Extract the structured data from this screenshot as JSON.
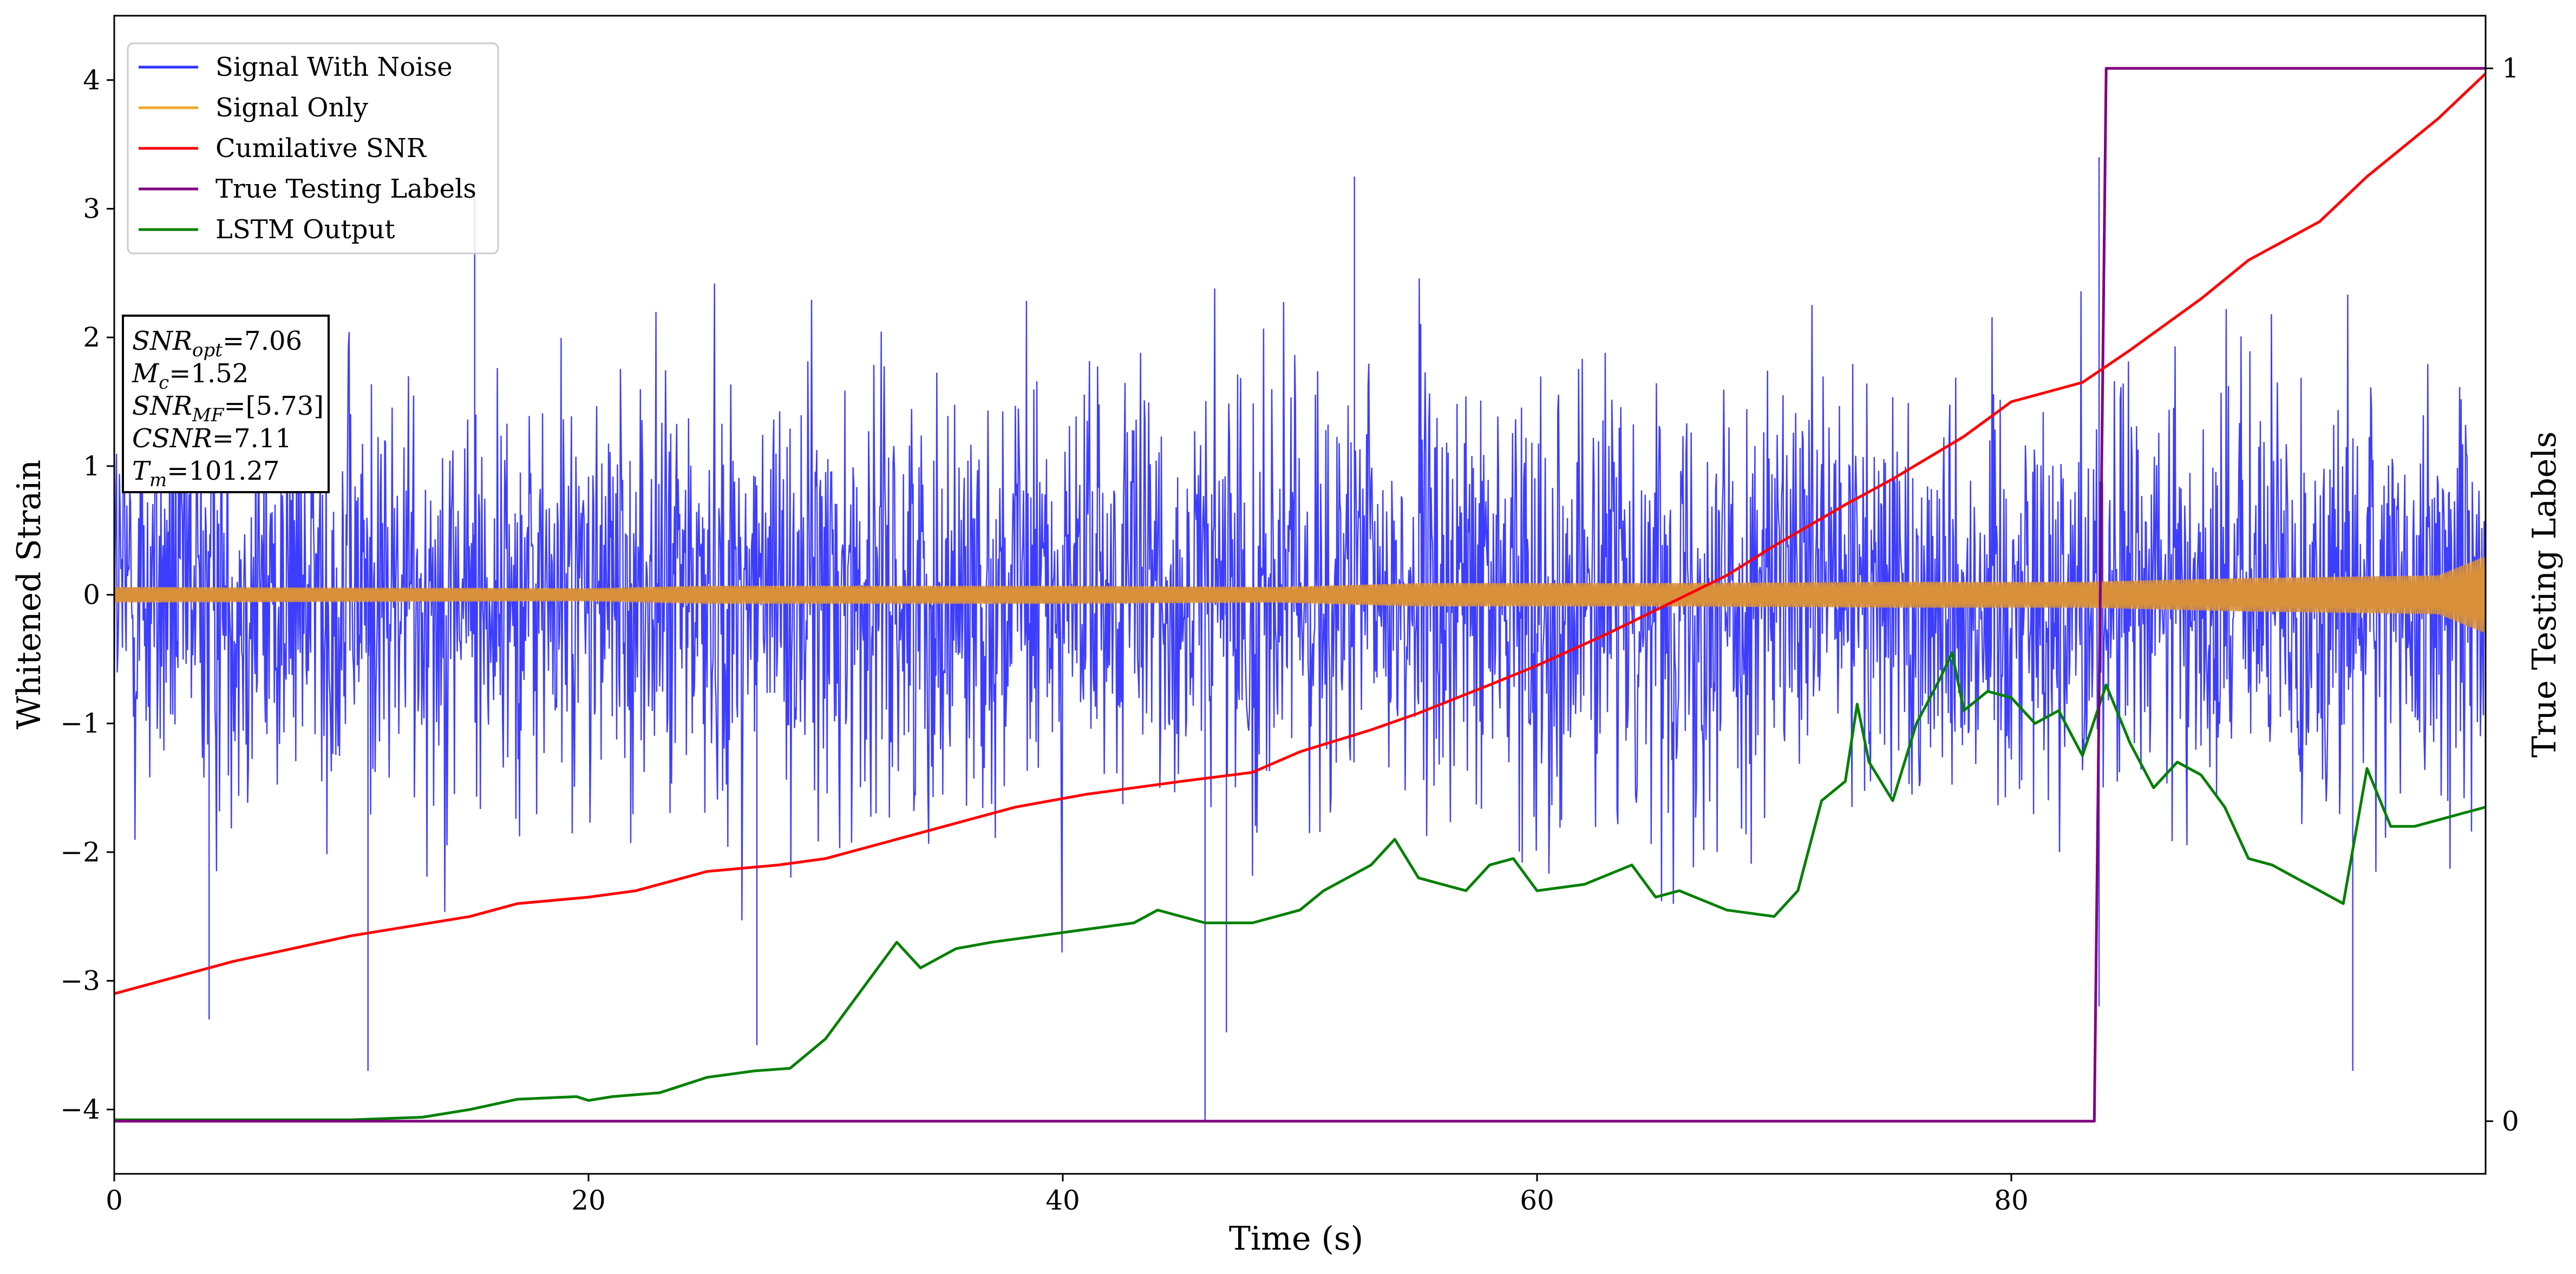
{
  "chart_data": {
    "type": "line",
    "xlabel": "Time (s)",
    "ylabel": "Whitened Strain",
    "y2label": "True Testing Labels",
    "xlim": [
      0,
      100
    ],
    "ylim": [
      -4.5,
      4.5
    ],
    "y2lim": [
      -0.05,
      1.05
    ],
    "x_ticks": [
      0,
      20,
      40,
      60,
      80
    ],
    "y_ticks": [
      -4,
      -3,
      -2,
      -1,
      0,
      1,
      2,
      3,
      4
    ],
    "y2_ticks": [
      0,
      1
    ],
    "grid": false,
    "legend_position": "top-left",
    "series": [
      {
        "name": "Signal With Noise",
        "color": "#3333ff",
        "axis": "left",
        "description_amplitude": [
          [
            0,
            3.2
          ],
          [
            100,
            3.2
          ]
        ],
        "typical_range": [
          -2.8,
          3.2
        ],
        "spikes": [
          [
            4.0,
            -3.3
          ],
          [
            10.7,
            -3.7
          ],
          [
            15.2,
            3.1
          ],
          [
            27.1,
            -3.5
          ],
          [
            46.0,
            -4.1
          ],
          [
            46.9,
            -3.4
          ],
          [
            52.3,
            3.25
          ],
          [
            83.7,
            3.4
          ],
          [
            83.7,
            -3.2
          ],
          [
            94.4,
            -3.7
          ]
        ]
      },
      {
        "name": "Signal Only",
        "color": "#f0a830",
        "axis": "left",
        "envelope": [
          [
            0,
            0.06
          ],
          [
            20,
            0.05
          ],
          [
            25,
            0.07
          ],
          [
            40,
            0.07
          ],
          [
            49,
            0.06
          ],
          [
            55,
            0.09
          ],
          [
            65,
            0.09
          ],
          [
            75,
            0.1
          ],
          [
            83,
            0.1
          ],
          [
            90,
            0.13
          ],
          [
            98,
            0.15
          ],
          [
            100,
            0.3
          ]
        ]
      },
      {
        "name": "Cumilative SNR",
        "color": "#ff0000",
        "axis": "left",
        "x": [
          0,
          5,
          10,
          15,
          17,
          20,
          22,
          25,
          28,
          30,
          33,
          35,
          38,
          41,
          45,
          48,
          50,
          53,
          55,
          58,
          60,
          63,
          65,
          68,
          70,
          73,
          75,
          78,
          80,
          83,
          85,
          88,
          90,
          93,
          95,
          98,
          100
        ],
        "y": [
          -3.1,
          -2.85,
          -2.65,
          -2.5,
          -2.4,
          -2.35,
          -2.3,
          -2.15,
          -2.1,
          -2.05,
          -1.9,
          -1.8,
          -1.65,
          -1.55,
          -1.45,
          -1.38,
          -1.22,
          -1.05,
          -0.92,
          -0.7,
          -0.55,
          -0.3,
          -0.12,
          0.15,
          0.38,
          0.7,
          0.9,
          1.23,
          1.5,
          1.65,
          1.9,
          2.3,
          2.6,
          2.9,
          3.25,
          3.7,
          4.05
        ]
      },
      {
        "name": "True Testing Labels",
        "color": "#800080",
        "axis": "right",
        "x": [
          0,
          83.5,
          84.0,
          100
        ],
        "y": [
          0,
          0,
          1,
          1
        ]
      },
      {
        "name": "LSTM Output",
        "color": "#008000",
        "axis": "left",
        "x": [
          0,
          10,
          13,
          15,
          17,
          19.5,
          20,
          21,
          23,
          25,
          27,
          28.5,
          30,
          31,
          32,
          33,
          34,
          35.5,
          37,
          39,
          41,
          43,
          44,
          46,
          48,
          50,
          51,
          52,
          53,
          54,
          55,
          56,
          57,
          58,
          59,
          60,
          62,
          64,
          65,
          66,
          68,
          70,
          71,
          72,
          73,
          73.5,
          74,
          75,
          76,
          77,
          77.5,
          78,
          79,
          80,
          81,
          82,
          83,
          84,
          85,
          86,
          87,
          88,
          89,
          90,
          91,
          92,
          93,
          94,
          95,
          96,
          97,
          98,
          99,
          100
        ],
        "y": [
          -4.08,
          -4.08,
          -4.06,
          -4.0,
          -3.92,
          -3.9,
          -3.93,
          -3.9,
          -3.87,
          -3.75,
          -3.7,
          -3.68,
          -3.45,
          -3.2,
          -2.95,
          -2.7,
          -2.9,
          -2.75,
          -2.7,
          -2.65,
          -2.6,
          -2.55,
          -2.45,
          -2.55,
          -2.55,
          -2.45,
          -2.3,
          -2.2,
          -2.1,
          -1.9,
          -2.2,
          -2.25,
          -2.3,
          -2.1,
          -2.05,
          -2.3,
          -2.25,
          -2.1,
          -2.35,
          -2.3,
          -2.45,
          -2.5,
          -2.3,
          -1.6,
          -1.45,
          -0.85,
          -1.3,
          -1.6,
          -1.0,
          -0.65,
          -0.45,
          -0.9,
          -0.75,
          -0.8,
          -1.0,
          -0.9,
          -1.25,
          -0.7,
          -1.15,
          -1.5,
          -1.3,
          -1.4,
          -1.65,
          -2.05,
          -2.1,
          -2.2,
          -2.3,
          -2.4,
          -1.35,
          -1.8,
          -1.8,
          -1.75,
          -1.7,
          -1.65
        ]
      }
    ],
    "annotation": {
      "lines": [
        {
          "sym": "SNR",
          "sub": "opt",
          "text": "=7.06"
        },
        {
          "sym": "M",
          "sub": "c",
          "text": "=1.52"
        },
        {
          "sym": "SNR",
          "sub": "MF",
          "text": "=[5.73]"
        },
        {
          "sym": "CSNR",
          "sub": "",
          "text": "=7.11"
        },
        {
          "sym": "T",
          "sub": "m",
          "text": "=101.27"
        }
      ]
    }
  }
}
